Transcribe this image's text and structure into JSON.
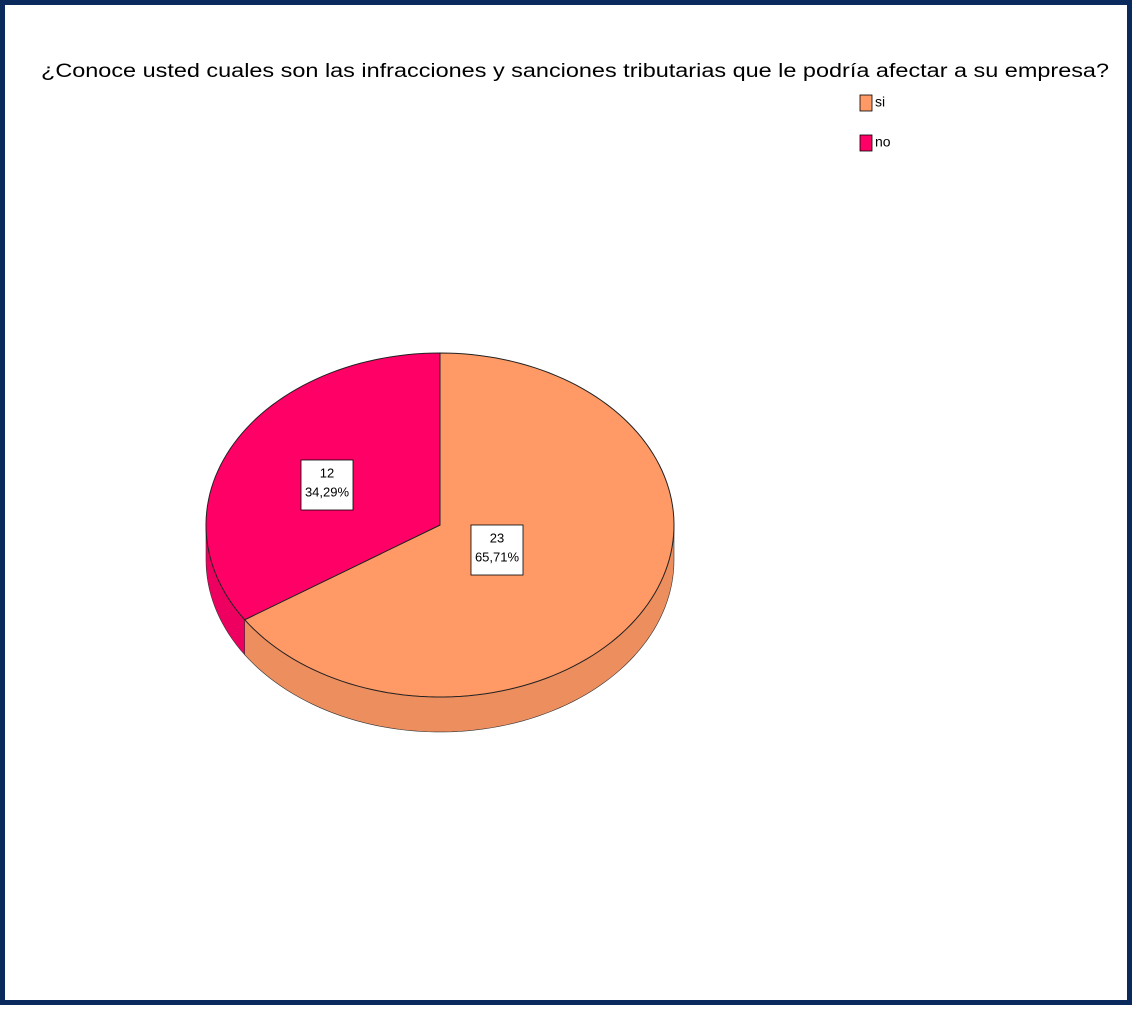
{
  "chart_data": {
    "type": "pie",
    "title": "¿Conoce usted cuales son las infracciones y sanciones tributarias que le podría afectar a su empresa?",
    "categories": [
      "si",
      "no"
    ],
    "values": [
      23,
      12
    ],
    "percent_values": [
      65.71,
      34.29
    ],
    "percent_labels": [
      "65,71%",
      "34,29%"
    ],
    "colors": [
      "#ff9966",
      "#ff0066"
    ],
    "legend": "top-right"
  }
}
